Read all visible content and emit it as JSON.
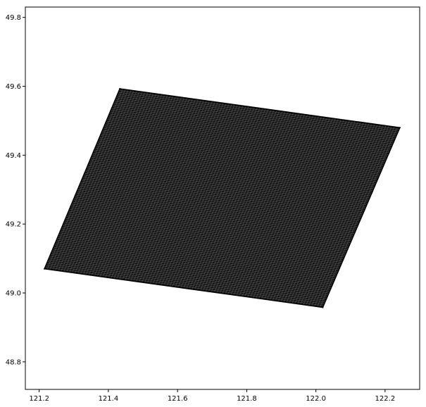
{
  "chart_data": {
    "type": "scatter",
    "title": "",
    "xlabel": "",
    "ylabel": "",
    "xlim": [
      121.16,
      122.3
    ],
    "ylim": [
      48.72,
      49.83
    ],
    "x_ticks": [
      "121.2",
      "121.4",
      "121.6",
      "121.8",
      "122.0",
      "122.2"
    ],
    "y_ticks": [
      "48.8",
      "49.0",
      "49.2",
      "49.4",
      "49.6",
      "49.8"
    ],
    "grid": false,
    "series": [
      {
        "kind": "polygon",
        "fill_color": "#161616",
        "edge_color": "#000000",
        "mesh_color": "#8a8a8a",
        "corners": [
          {
            "x": 121.433,
            "y": 49.593
          },
          {
            "x": 122.243,
            "y": 49.48
          },
          {
            "x": 122.02,
            "y": 48.958
          },
          {
            "x": 121.215,
            "y": 49.07
          }
        ],
        "mesh_divisions": 100
      }
    ]
  }
}
